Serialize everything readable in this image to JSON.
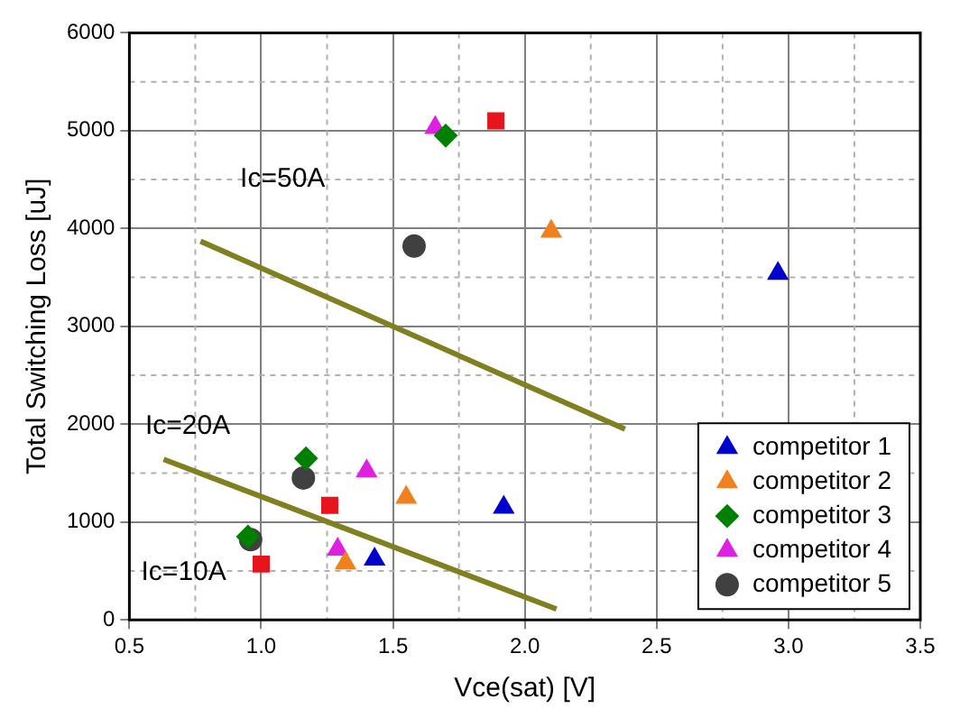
{
  "chart_data": {
    "type": "scatter",
    "xlabel": "Vce(sat) [V]",
    "ylabel": "Total Switching Loss [uJ]",
    "xlim": [
      0.5,
      3.5
    ],
    "xticks": [
      0.5,
      {
        "value": 1,
        "label": "1.0"
      },
      1.5,
      {
        "value": 2,
        "label": "2.0"
      },
      2.5,
      {
        "value": 3,
        "label": "3.0"
      },
      3.5
    ],
    "ylim": [
      0,
      6000
    ],
    "yticks": [
      0,
      1000,
      2000,
      3000,
      4000,
      5000,
      6000
    ],
    "grid": true,
    "legend": "bottom right",
    "series": [
      {
        "color": "#e8141c",
        "marker": "square",
        "x": [
          1.89,
          1.0,
          1.26
        ],
        "values": [
          5100,
          570,
          1170
        ]
      },
      {
        "name": "competitor 1",
        "color": "#0000cc",
        "marker": "triangle",
        "x": [
          2.96,
          1.92,
          1.43
        ],
        "values": [
          3540,
          1150,
          620
        ]
      },
      {
        "name": "competitor 2",
        "color": "#f08020",
        "marker": "triangle",
        "x": [
          2.1,
          1.55,
          1.32
        ],
        "values": [
          3970,
          1250,
          580
        ]
      },
      {
        "name": "competitor 3",
        "color": "#008000",
        "marker": "diamond",
        "x": [
          1.7,
          1.17,
          0.95
        ],
        "values": [
          4950,
          1650,
          850
        ]
      },
      {
        "name": "competitor 4",
        "color": "#e020e0",
        "marker": "triangle",
        "x": [
          1.66,
          1.4,
          1.29
        ],
        "values": [
          5030,
          1520,
          720
        ]
      },
      {
        "name": "competitor 5",
        "color": "#404040",
        "marker": "circle",
        "x": [
          1.58,
          1.16,
          0.96
        ],
        "values": [
          3820,
          1450,
          820
        ]
      },
      {
        "type": "line",
        "color": "#808020",
        "marker": "none",
        "x": [
          0.77,
          2.38
        ],
        "values": [
          3870,
          1950
        ]
      },
      {
        "type": "line",
        "color": "#808020",
        "marker": "none",
        "x": [
          0.63,
          2.12
        ],
        "values": [
          1640,
          110
        ]
      }
    ],
    "annotations": [
      "Ic=50A",
      "Ic=20A",
      "Ic=10A"
    ]
  }
}
